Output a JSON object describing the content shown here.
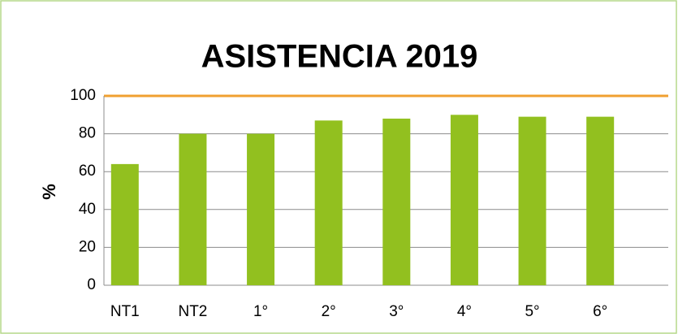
{
  "chart_data": {
    "type": "bar",
    "title": "ASISTENCIA 2019",
    "y_label": "%",
    "categories": [
      "NT1",
      "NT2",
      "1°",
      "2°",
      "3°",
      "4°",
      "5°",
      "6°"
    ],
    "values": [
      64,
      80,
      80,
      87,
      88,
      90,
      89,
      89
    ],
    "color": "#92c01f",
    "ylim": [
      0,
      100
    ],
    "yticks": [
      0,
      20,
      40,
      60,
      80,
      100
    ],
    "grid": true
  }
}
